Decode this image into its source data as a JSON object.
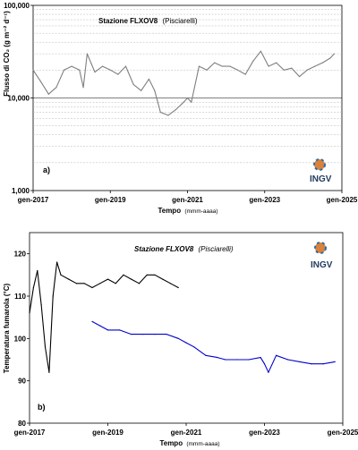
{
  "chart_data": [
    {
      "type": "line",
      "title": "Stazione FLXOV8",
      "subtitle": "(Pisciarelli)",
      "panel_label": "a)",
      "logo_text": "INGV",
      "xlabel": "Tempo",
      "xunit": "(mmm-aaaa)",
      "ylabel": "Flusso di CO₂ (g m⁻² d⁻¹)",
      "yscale": "log",
      "ylim": [
        1000,
        100000
      ],
      "yticks": [
        1000,
        10000,
        100000
      ],
      "ytick_labels": [
        "1,000",
        "10,000",
        "100,000"
      ],
      "xlim": [
        2017.0,
        2025.0
      ],
      "xticks": [
        2017,
        2019,
        2021,
        2023,
        2025
      ],
      "xtick_labels": [
        "gen-2017",
        "gen-2019",
        "gen-2021",
        "gen-2023",
        "gen-2025"
      ],
      "grid": true,
      "series": [
        {
          "color": "#7f7f7f",
          "x": [
            2017.0,
            2017.2,
            2017.4,
            2017.6,
            2017.8,
            2018.0,
            2018.2,
            2018.3,
            2018.4,
            2018.6,
            2018.8,
            2019.0,
            2019.2,
            2019.4,
            2019.6,
            2019.8,
            2020.0,
            2020.15,
            2020.3,
            2020.5,
            2020.7,
            2020.9,
            2021.0,
            2021.1,
            2021.3,
            2021.5,
            2021.7,
            2021.9,
            2022.1,
            2022.3,
            2022.5,
            2022.7,
            2022.9,
            2023.1,
            2023.3,
            2023.5,
            2023.7,
            2023.9,
            2024.1,
            2024.3,
            2024.5,
            2024.7,
            2024.8
          ],
          "y": [
            20000,
            15000,
            11000,
            13000,
            20000,
            22000,
            20000,
            13000,
            30000,
            19000,
            22000,
            20000,
            18000,
            22000,
            14000,
            12000,
            16000,
            12000,
            7000,
            6500,
            7500,
            9000,
            10000,
            9000,
            22000,
            20000,
            24000,
            22000,
            22000,
            20000,
            18000,
            25000,
            32000,
            22000,
            24000,
            20000,
            21000,
            17000,
            20000,
            22000,
            24000,
            27000,
            30000
          ]
        }
      ]
    },
    {
      "type": "line",
      "title": "Stazione FLXOV8",
      "subtitle": "(Pisciarelli)",
      "panel_label": "b)",
      "logo_text": "INGV",
      "xlabel": "Tempo",
      "xunit": "(mmm-aaaa)",
      "ylabel": "Temperatura fumarola (°C)",
      "ylim": [
        80,
        125
      ],
      "yticks": [
        80,
        90,
        100,
        110,
        120
      ],
      "ytick_labels": [
        "80",
        "90",
        "100",
        "110",
        "120"
      ],
      "xlim": [
        2017.0,
        2025.0
      ],
      "xticks": [
        2017,
        2019,
        2021,
        2023,
        2025
      ],
      "xtick_labels": [
        "gen-2017",
        "gen-2019",
        "gen-2021",
        "gen-2023",
        "gen-2025"
      ],
      "grid": false,
      "series": [
        {
          "color": "#000000",
          "x": [
            2017.0,
            2017.1,
            2017.2,
            2017.3,
            2017.4,
            2017.5,
            2017.6,
            2017.7,
            2017.8,
            2018.0,
            2018.2,
            2018.4,
            2018.6,
            2018.8,
            2019.0,
            2019.2,
            2019.4,
            2019.6,
            2019.8,
            2020.0,
            2020.2,
            2020.4,
            2020.6,
            2020.8
          ],
          "y": [
            106,
            112,
            116,
            108,
            98,
            92,
            110,
            118,
            115,
            114,
            113,
            113,
            112,
            113,
            114,
            113,
            115,
            114,
            113,
            115,
            115,
            114,
            113,
            112
          ]
        },
        {
          "color": "#0000cc",
          "x": [
            2018.6,
            2018.8,
            2019.0,
            2019.3,
            2019.6,
            2019.9,
            2020.2,
            2020.5,
            2020.8,
            2021.0,
            2021.2,
            2021.5,
            2021.8,
            2022.0,
            2022.3,
            2022.6,
            2022.9,
            2023.0,
            2023.1,
            2023.3,
            2023.6,
            2023.9,
            2024.2,
            2024.5,
            2024.8
          ],
          "y": [
            104,
            103,
            102,
            102,
            101,
            101,
            101,
            101,
            100,
            99,
            98,
            96,
            95.5,
            95,
            95,
            95,
            95.5,
            94,
            92,
            96,
            95,
            94.5,
            94,
            94,
            94.5
          ]
        }
      ]
    }
  ]
}
